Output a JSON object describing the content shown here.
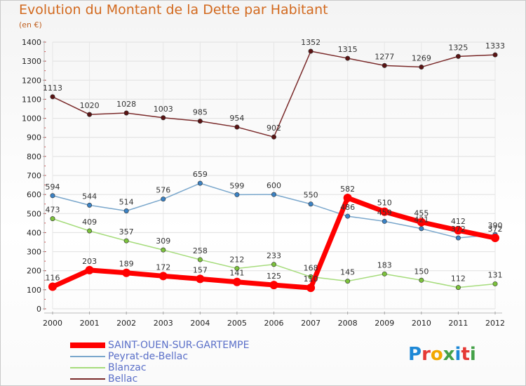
{
  "title": "Evolution du Montant de la Dette par Habitant",
  "unit": "(en €)",
  "logo": {
    "text": "Proxiti",
    "colors": [
      "#1e88d6",
      "#e53935",
      "#f2a800",
      "#43a047",
      "#1e88d6",
      "#e53935",
      "#43a047"
    ]
  },
  "chart_data": {
    "type": "line",
    "title": "Evolution du Montant de la Dette par Habitant",
    "ylabel": "(en €)",
    "xlabel": "",
    "x": [
      "2000",
      "2001",
      "2002",
      "2003",
      "2004",
      "2005",
      "2006",
      "2007",
      "2008",
      "2009",
      "2010",
      "2011",
      "2012"
    ],
    "ylim": [
      0,
      1400
    ],
    "yticks": [
      "0",
      "100",
      "200",
      "300",
      "400",
      "500",
      "600",
      "700",
      "800",
      "900",
      "1000",
      "1100",
      "1200",
      "1300",
      "1400"
    ],
    "grid": true,
    "legend_position": "bottom-left",
    "series": [
      {
        "name": "Bellac",
        "color": "#7a2a2a",
        "marker": "#5a1414",
        "values": [
          1113,
          1020,
          1028,
          1003,
          985,
          954,
          902,
          1352,
          1315,
          1277,
          1269,
          1325,
          1333
        ],
        "labels": [
          "1113",
          "1020",
          "1028",
          "1003",
          "985",
          "954",
          "902",
          "1352",
          "1315",
          "1277",
          "1269",
          "1325",
          "1333"
        ]
      },
      {
        "name": "Peyrat-de-Bellac",
        "color": "#7aa7cc",
        "marker": "#3b82c4",
        "values": [
          594,
          544,
          514,
          576,
          659,
          599,
          600,
          550,
          486,
          459,
          421,
          372,
          390
        ],
        "labels": [
          "594",
          "544",
          "514",
          "576",
          "659",
          "599",
          "600",
          "550",
          "486",
          "459",
          "421",
          "372",
          "390"
        ]
      },
      {
        "name": "Blanzac",
        "color": "#a6dc7c",
        "marker": "#7cc23c",
        "values": [
          473,
          409,
          357,
          309,
          258,
          212,
          233,
          168,
          145,
          183,
          150,
          112,
          131
        ],
        "labels": [
          "473",
          "409",
          "357",
          "309",
          "258",
          "212",
          "233",
          "168",
          "145",
          "183",
          "150",
          "112",
          "131"
        ]
      },
      {
        "name": "SAINT-OUEN-SUR-GARTEMPE",
        "color": "#ff0000",
        "marker": "#ff0000",
        "values": [
          116,
          203,
          189,
          172,
          157,
          141,
          125,
          110,
          582,
          510,
          455,
          412,
          372
        ],
        "labels": [
          "116",
          "203",
          "189",
          "172",
          "157",
          "141",
          "125",
          "110",
          "582",
          "510",
          "455",
          "412",
          "372"
        ]
      }
    ],
    "legend": [
      "SAINT-OUEN-SUR-GARTEMPE",
      "Peyrat-de-Bellac",
      "Blanzac",
      "Bellac"
    ]
  }
}
